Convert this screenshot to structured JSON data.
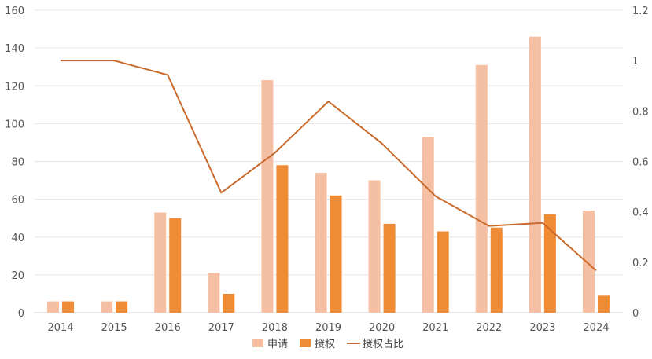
{
  "chart_data": {
    "type": "bar",
    "categories": [
      "2014",
      "2015",
      "2016",
      "2017",
      "2018",
      "2019",
      "2020",
      "2021",
      "2022",
      "2023",
      "2024"
    ],
    "series": [
      {
        "name": "申请",
        "type": "bar",
        "axis": "left",
        "color": "#f5bfa3",
        "values": [
          6,
          6,
          53,
          21,
          123,
          74,
          70,
          93,
          131,
          146,
          54
        ]
      },
      {
        "name": "授权",
        "type": "bar",
        "axis": "left",
        "color": "#ef8a35",
        "values": [
          6,
          6,
          50,
          10,
          78,
          62,
          47,
          43,
          45,
          52,
          9
        ]
      },
      {
        "name": "授权占比",
        "type": "line",
        "axis": "right",
        "color": "#c96a2c",
        "values": [
          1.0,
          1.0,
          0.943,
          0.476,
          0.634,
          0.838,
          0.671,
          0.462,
          0.344,
          0.356,
          0.167
        ]
      }
    ],
    "ylim_left": [
      0,
      160
    ],
    "ylim_right": [
      0,
      1.2
    ],
    "yticks_left": [
      "0",
      "20",
      "40",
      "60",
      "80",
      "100",
      "120",
      "140",
      "160"
    ],
    "yticks_right": [
      "0",
      "0.2",
      "0.4",
      "0.6",
      "0.8",
      "1",
      "1.2"
    ],
    "grid": true,
    "legend_position": "bottom",
    "title": "",
    "xlabel": "",
    "ylabel": ""
  }
}
